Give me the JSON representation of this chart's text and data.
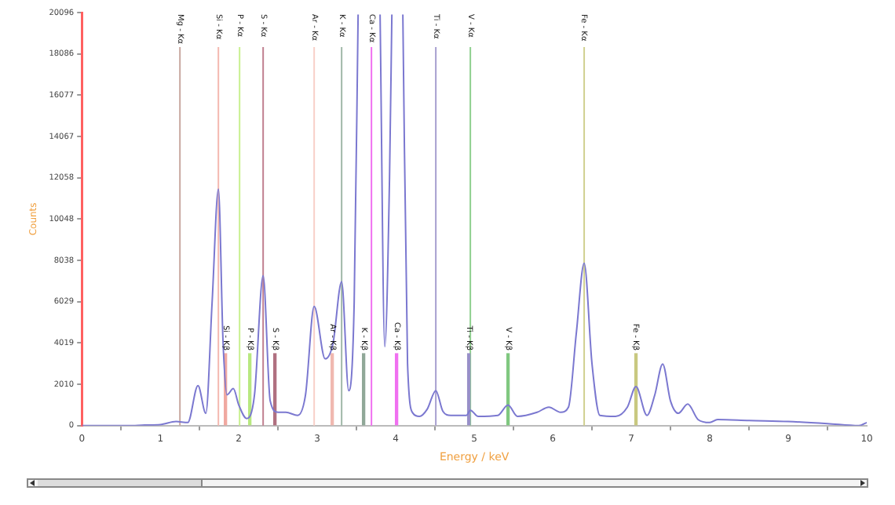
{
  "chart_data": {
    "type": "line",
    "xlabel": "Energy / keV",
    "ylabel": "Counts",
    "xlim": [
      0,
      10
    ],
    "xticks": [
      0,
      1,
      2,
      3,
      4,
      5,
      6,
      7,
      8,
      9,
      10
    ],
    "ylim": [
      0,
      20096
    ],
    "yticks": [
      0,
      2010,
      4019,
      6029,
      8038,
      10048,
      12058,
      14067,
      16077,
      18086,
      20096
    ],
    "grid": false,
    "legend": false,
    "marker": "none",
    "line_style": "solid",
    "series": [
      {
        "color": "#7b78d0",
        "x": [
          0,
          0.6,
          0.8,
          1.0,
          1.2,
          1.35,
          1.48,
          1.58,
          1.66,
          1.74,
          1.8,
          1.85,
          1.93,
          2.0,
          2.1,
          2.2,
          2.31,
          2.4,
          2.5,
          2.6,
          2.75,
          2.85,
          2.96,
          3.1,
          3.2,
          3.31,
          3.4,
          3.47,
          3.52,
          3.66,
          3.8,
          3.86,
          3.92,
          3.95,
          4.02,
          4.09,
          4.15,
          4.22,
          4.3,
          4.4,
          4.51,
          4.6,
          4.7,
          4.9,
          4.95,
          5.05,
          5.3,
          5.43,
          5.55,
          5.8,
          5.95,
          6.1,
          6.2,
          6.3,
          6.4,
          6.5,
          6.6,
          6.8,
          6.95,
          7.06,
          7.2,
          7.3,
          7.4,
          7.5,
          7.6,
          7.72,
          7.85,
          8.0,
          8.1,
          8.5,
          9.0,
          9.5,
          9.9,
          10
        ],
        "values": [
          0,
          0,
          30,
          50,
          200,
          150,
          1950,
          600,
          6000,
          11500,
          4000,
          1500,
          1800,
          1000,
          350,
          1500,
          7300,
          1200,
          650,
          650,
          500,
          1500,
          5800,
          3250,
          4000,
          7000,
          1700,
          6000,
          20000,
          null,
          20000,
          3840,
          12000,
          20000,
          null,
          20000,
          3000,
          600,
          450,
          800,
          1700,
          700,
          500,
          500,
          750,
          450,
          500,
          1000,
          450,
          650,
          900,
          650,
          900,
          4500,
          7900,
          3000,
          500,
          450,
          900,
          1900,
          500,
          1500,
          3000,
          1200,
          600,
          1050,
          300,
          150,
          300,
          250,
          200,
          100,
          0,
          150
        ]
      },
      {
        "type": "bar",
        "x": [
          1.83,
          2.14,
          2.46,
          3.19,
          3.59,
          4.01,
          4.93,
          5.43,
          7.06
        ],
        "values": [
          3500,
          3500,
          3500,
          3500,
          3500,
          3500,
          3500,
          3500,
          3500
        ],
        "colors": [
          "#f0a8a0",
          "#b8e880",
          "#b07080",
          "#f0b8b0",
          "#90a898",
          "#f070f0",
          "#9890c8",
          "#80c880",
          "#c8c880"
        ]
      }
    ],
    "ref_lines": [
      {
        "axis": "x",
        "value": 1.25,
        "label": "Mg - Kα",
        "color": "#c8a8a0"
      },
      {
        "axis": "x",
        "value": 1.74,
        "label": "Si - Kα",
        "color": "#f4b8b0"
      },
      {
        "axis": "x",
        "value": 2.01,
        "label": "P - Kα",
        "color": "#c8f090"
      },
      {
        "axis": "x",
        "value": 2.31,
        "label": "S - Kα",
        "color": "#c08090"
      },
      {
        "axis": "x",
        "value": 2.96,
        "label": "Ar - Kα",
        "color": "#f8d0c8"
      },
      {
        "axis": "x",
        "value": 3.31,
        "label": "K - Kα",
        "color": "#a0b8a8"
      },
      {
        "axis": "x",
        "value": 3.69,
        "label": "Ca - Kα",
        "color": "#f070f0"
      },
      {
        "axis": "x",
        "value": 4.51,
        "label": "Ti - Kα",
        "color": "#a8a0d0"
      },
      {
        "axis": "x",
        "value": 4.95,
        "label": "V - Kα",
        "color": "#90d090"
      },
      {
        "axis": "x",
        "value": 6.4,
        "label": "Fe - Kα",
        "color": "#d0d090"
      }
    ],
    "annotations": [
      {
        "text": "Si - Kβ",
        "x": 1.83,
        "y": 3500
      },
      {
        "text": "P - Kβ",
        "x": 2.14,
        "y": 3500
      },
      {
        "text": "S - Kβ",
        "x": 2.46,
        "y": 3500
      },
      {
        "text": "Ar - Kβ",
        "x": 3.19,
        "y": 3500
      },
      {
        "text": "K - Kβ",
        "x": 3.59,
        "y": 3500
      },
      {
        "text": "Ca - Kβ",
        "x": 4.01,
        "y": 3500
      },
      {
        "text": "Ti - Kβ",
        "x": 4.93,
        "y": 3500
      },
      {
        "text": "V - Kβ",
        "x": 5.43,
        "y": 3500
      },
      {
        "text": "Fe - Kβ",
        "x": 7.06,
        "y": 3500
      }
    ]
  }
}
